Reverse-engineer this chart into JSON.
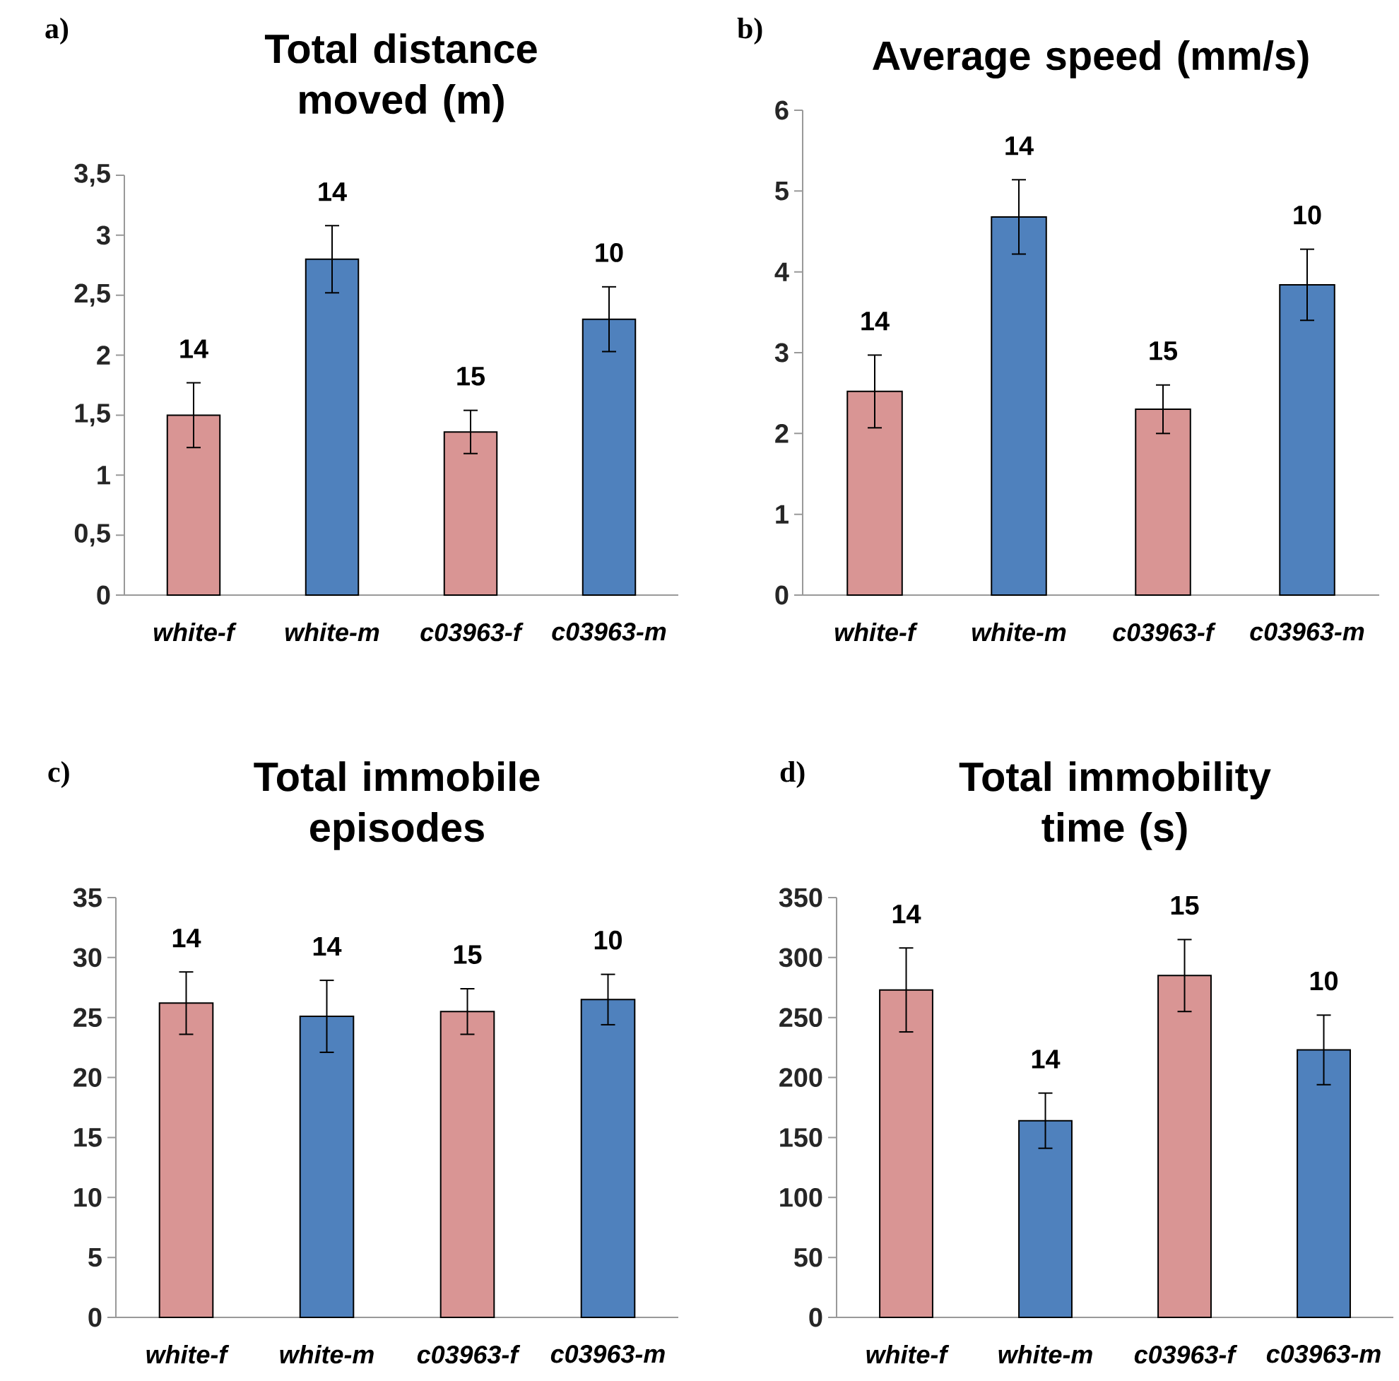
{
  "chart_data": [
    {
      "type": "bar",
      "title": "Total distance moved (m)",
      "categories": [
        "white-f",
        "white-m",
        "c03963-f",
        "c03963-m"
      ],
      "values": [
        1.5,
        2.8,
        1.36,
        2.3
      ],
      "errors": [
        0.27,
        0.28,
        0.18,
        0.27
      ],
      "colors": [
        "#d99594",
        "#4f81bd",
        "#d99594",
        "#4f81bd"
      ],
      "ylim": [
        0,
        3.5
      ],
      "yticks": [
        0,
        {
          "value": 0.5,
          "label": "0,5"
        },
        1,
        {
          "value": 1.5,
          "label": "1,5"
        },
        2,
        {
          "value": 2.5,
          "label": "2,5"
        },
        3,
        {
          "value": 3.5,
          "label": "3,5"
        }
      ],
      "annotations": [
        "a)",
        "14",
        "14",
        "15",
        "10"
      ]
    },
    {
      "type": "bar",
      "title": "Average speed (mm/s)",
      "categories": [
        "white-f",
        "white-m",
        "c03963-f",
        "c03963-m"
      ],
      "values": [
        2.52,
        4.68,
        2.3,
        3.84
      ],
      "errors": [
        0.45,
        0.46,
        0.3,
        0.44
      ],
      "colors": [
        "#d99594",
        "#4f81bd",
        "#d99594",
        "#4f81bd"
      ],
      "ylim": [
        0,
        6
      ],
      "yticks": [
        0,
        1,
        2,
        3,
        4,
        5,
        6
      ],
      "annotations": [
        "b)",
        "14",
        "14",
        "15",
        "10"
      ]
    },
    {
      "type": "bar",
      "title": "Total immobile episodes",
      "categories": [
        "white-f",
        "white-m",
        "c03963-f",
        "c03963-m"
      ],
      "values": [
        26.2,
        25.1,
        25.5,
        26.5
      ],
      "errors": [
        2.6,
        3.0,
        1.9,
        2.1
      ],
      "colors": [
        "#d99594",
        "#4f81bd",
        "#d99594",
        "#4f81bd"
      ],
      "ylim": [
        0,
        35
      ],
      "yticks": [
        0,
        5,
        10,
        15,
        20,
        25,
        30,
        35
      ],
      "annotations": [
        "c)",
        "14",
        "14",
        "15",
        "10"
      ]
    },
    {
      "type": "bar",
      "title": "Total immobility time (s)",
      "categories": [
        "white-f",
        "white-m",
        "c03963-f",
        "c03963-m"
      ],
      "values": [
        273,
        164,
        285,
        223
      ],
      "errors": [
        35,
        23,
        30,
        29
      ],
      "colors": [
        "#d99594",
        "#4f81bd",
        "#d99594",
        "#4f81bd"
      ],
      "ylim": [
        0,
        350
      ],
      "yticks": [
        0,
        50,
        100,
        150,
        200,
        250,
        300,
        350
      ],
      "annotations": [
        "d)",
        "14",
        "14",
        "15",
        "10"
      ]
    }
  ]
}
